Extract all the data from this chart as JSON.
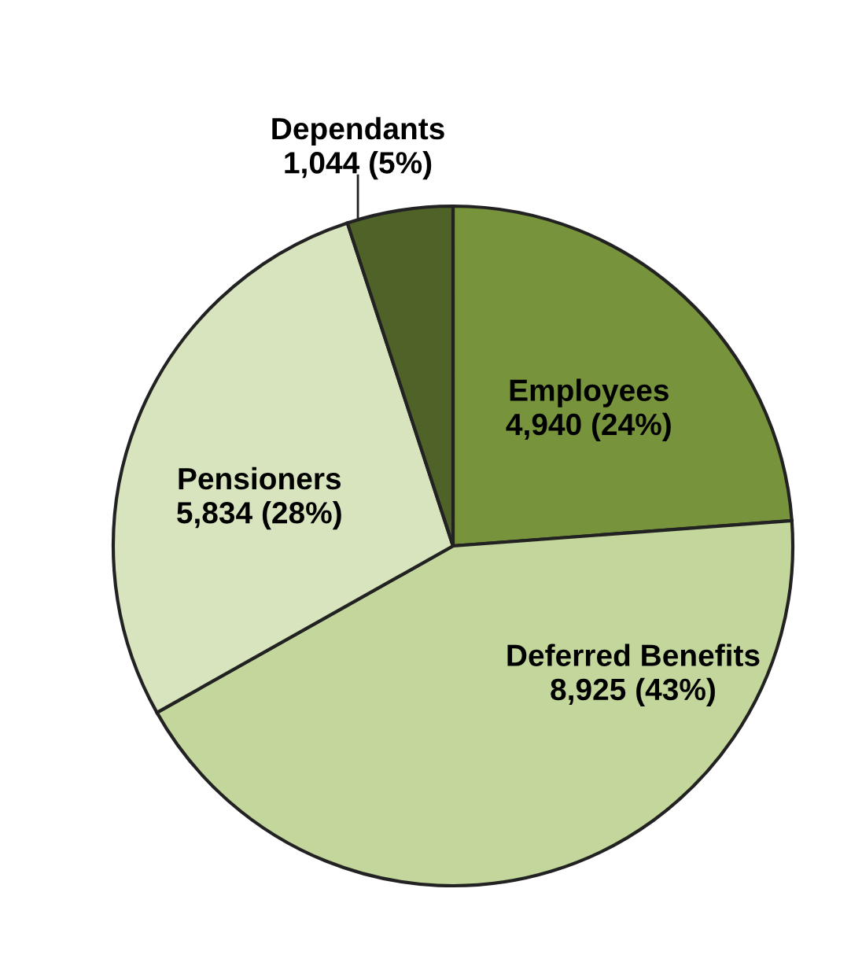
{
  "chart_data": {
    "type": "pie",
    "categories": [
      "Employees",
      "Deferred Benefits",
      "Pensioners",
      "Dependants"
    ],
    "values": [
      4940,
      8925,
      5834,
      1044
    ],
    "value_labels": [
      "4,940 (24%)",
      "8,925 (43%)",
      "5,834 (28%)",
      "1,044 (5%)"
    ],
    "colors": [
      "#77933c",
      "#c3d69b",
      "#d7e4bd",
      "#4f6228"
    ]
  }
}
